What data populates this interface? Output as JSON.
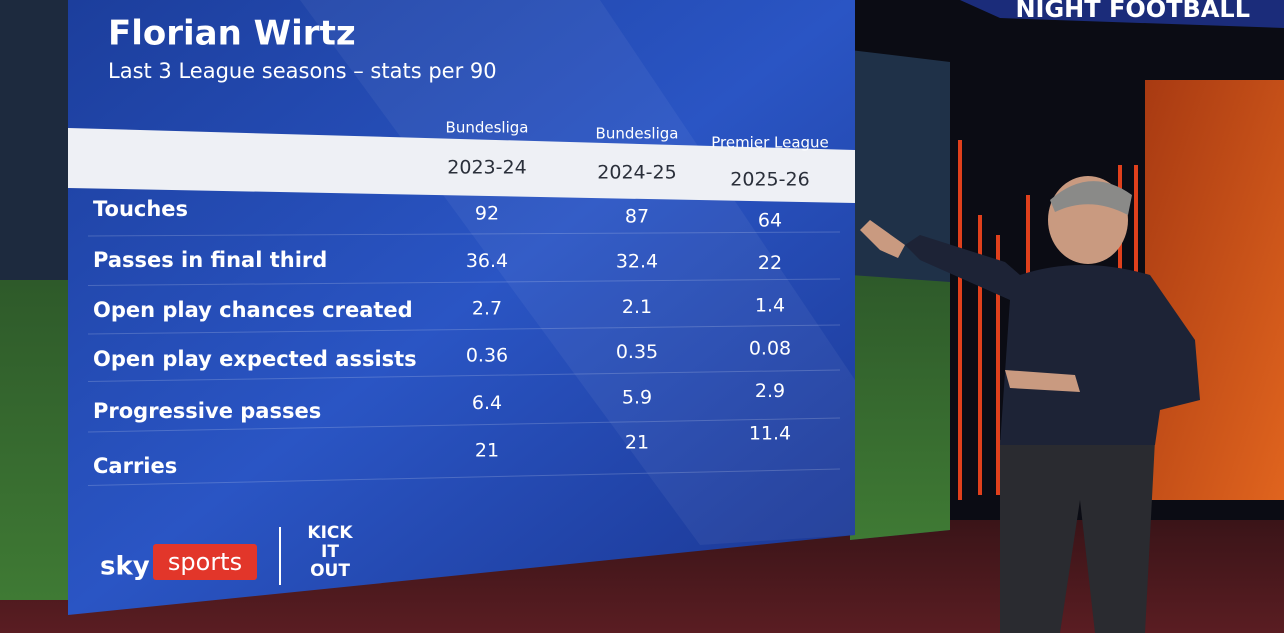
{
  "banner": "NIGHT FOOTBALL",
  "header": {
    "title": "Florian Wirtz",
    "subtitle": "Last 3 League seasons – stats per 90"
  },
  "table": {
    "columns": [
      {
        "league": "Bundesliga",
        "season": "2023-24"
      },
      {
        "league": "Bundesliga",
        "season": "2024-25"
      },
      {
        "league": "Premier League",
        "season": "2025-26"
      }
    ],
    "rows": [
      {
        "label": "Touches",
        "values": [
          "92",
          "87",
          "64"
        ]
      },
      {
        "label": "Passes in final third",
        "values": [
          "36.4",
          "32.4",
          "22"
        ]
      },
      {
        "label": "Open play chances created",
        "values": [
          "2.7",
          "2.1",
          "1.4"
        ]
      },
      {
        "label": "Open play expected assists",
        "values": [
          "0.36",
          "0.35",
          "0.08"
        ]
      },
      {
        "label": "Progressive passes",
        "values": [
          "6.4",
          "5.9",
          "2.9"
        ]
      },
      {
        "label": "Carries",
        "values": [
          "21",
          "21",
          "11.4"
        ]
      }
    ]
  },
  "footer": {
    "brand_sky": "sky",
    "brand_sports": "sports",
    "campaign": [
      "KICK",
      "IT",
      "OUT"
    ]
  }
}
